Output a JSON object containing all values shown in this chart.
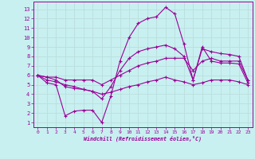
{
  "xlabel": "Windchill (Refroidissement éolien,°C)",
  "background_color": "#c8f0f0",
  "grid_color": "#aadddd",
  "line_color": "#990099",
  "x_ticks": [
    0,
    1,
    2,
    3,
    4,
    5,
    6,
    7,
    8,
    9,
    10,
    11,
    12,
    13,
    14,
    15,
    16,
    17,
    18,
    19,
    20,
    21,
    22,
    23
  ],
  "y_ticks": [
    1,
    2,
    3,
    4,
    5,
    6,
    7,
    8,
    9,
    10,
    11,
    12,
    13
  ],
  "ylim": [
    0.5,
    13.8
  ],
  "xlim": [
    -0.5,
    23.5
  ],
  "series": [
    {
      "x": [
        0,
        1,
        2,
        3,
        4,
        5,
        6,
        7,
        8,
        9,
        10,
        11,
        12,
        13,
        14,
        15,
        16,
        17,
        18,
        19,
        20,
        21,
        22,
        23
      ],
      "y": [
        6.0,
        5.2,
        5.0,
        1.7,
        2.2,
        2.3,
        2.3,
        1.0,
        3.8,
        7.5,
        10.0,
        11.5,
        12.0,
        12.2,
        13.2,
        12.5,
        9.3,
        5.5,
        9.0,
        7.5,
        7.3,
        7.3,
        7.2,
        5.2
      ]
    },
    {
      "x": [
        0,
        1,
        2,
        3,
        4,
        5,
        6,
        7,
        8,
        9,
        10,
        11,
        12,
        13,
        14,
        15,
        16,
        17,
        18,
        19,
        20,
        21,
        22,
        23
      ],
      "y": [
        6.0,
        5.8,
        5.5,
        4.8,
        4.6,
        4.5,
        4.3,
        3.5,
        4.8,
        6.5,
        7.8,
        8.5,
        8.8,
        9.0,
        9.2,
        8.8,
        8.0,
        5.5,
        8.8,
        8.5,
        8.3,
        8.2,
        8.0,
        5.5
      ]
    },
    {
      "x": [
        0,
        1,
        2,
        3,
        4,
        5,
        6,
        7,
        8,
        9,
        10,
        11,
        12,
        13,
        14,
        15,
        16,
        17,
        18,
        19,
        20,
        21,
        22,
        23
      ],
      "y": [
        6.0,
        5.8,
        5.8,
        5.5,
        5.5,
        5.5,
        5.5,
        5.0,
        5.5,
        6.0,
        6.5,
        7.0,
        7.3,
        7.5,
        7.8,
        7.8,
        7.8,
        6.5,
        7.5,
        7.8,
        7.5,
        7.5,
        7.5,
        5.5
      ]
    },
    {
      "x": [
        0,
        1,
        2,
        3,
        4,
        5,
        6,
        7,
        8,
        9,
        10,
        11,
        12,
        13,
        14,
        15,
        16,
        17,
        18,
        19,
        20,
        21,
        22,
        23
      ],
      "y": [
        6.0,
        5.5,
        5.3,
        5.0,
        4.8,
        4.5,
        4.3,
        4.0,
        4.2,
        4.5,
        4.8,
        5.0,
        5.3,
        5.5,
        5.8,
        5.5,
        5.3,
        5.0,
        5.2,
        5.5,
        5.5,
        5.5,
        5.3,
        5.0
      ]
    }
  ]
}
